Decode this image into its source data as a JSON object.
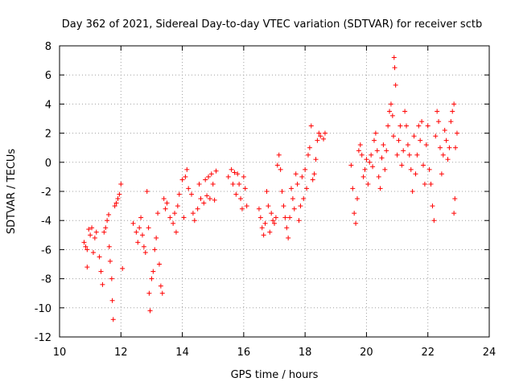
{
  "chart_data": {
    "type": "scatter",
    "title": "Day 362 of 2021, Sidereal Day-to-day VTEC variation (SDTVAR) for receiver sctb",
    "xlabel": "GPS time / hours",
    "ylabel": "SDTVAR / TECUs",
    "xlim": [
      10,
      24
    ],
    "ylim": [
      -12,
      8
    ],
    "xticks": [
      10,
      12,
      14,
      16,
      18,
      20,
      22,
      24
    ],
    "yticks": [
      -12,
      -10,
      -8,
      -6,
      -4,
      -2,
      0,
      2,
      4,
      6,
      8
    ],
    "grid": true,
    "marker": "+",
    "color": "#ff0000",
    "series": [
      {
        "name": "SDTVAR",
        "points": [
          [
            10.8,
            -5.5
          ],
          [
            10.85,
            -5.8
          ],
          [
            10.9,
            -7.2
          ],
          [
            10.9,
            -6.0
          ],
          [
            10.95,
            -4.6
          ],
          [
            11.0,
            -5.0
          ],
          [
            11.05,
            -4.5
          ],
          [
            11.1,
            -6.2
          ],
          [
            11.15,
            -5.2
          ],
          [
            11.2,
            -4.8
          ],
          [
            11.3,
            -6.5
          ],
          [
            11.35,
            -7.5
          ],
          [
            11.4,
            -8.4
          ],
          [
            11.45,
            -4.8
          ],
          [
            11.5,
            -4.5
          ],
          [
            11.55,
            -4.0
          ],
          [
            11.6,
            -3.6
          ],
          [
            11.62,
            -5.8
          ],
          [
            11.65,
            -6.8
          ],
          [
            11.7,
            -8.0
          ],
          [
            11.72,
            -9.5
          ],
          [
            11.75,
            -10.8
          ],
          [
            11.8,
            -3.0
          ],
          [
            11.85,
            -2.8
          ],
          [
            11.9,
            -2.5
          ],
          [
            11.95,
            -2.2
          ],
          [
            12.0,
            -1.5
          ],
          [
            12.05,
            -7.3
          ],
          [
            12.4,
            -4.2
          ],
          [
            12.5,
            -4.8
          ],
          [
            12.55,
            -5.5
          ],
          [
            12.6,
            -4.5
          ],
          [
            12.65,
            -3.8
          ],
          [
            12.7,
            -5.0
          ],
          [
            12.75,
            -5.8
          ],
          [
            12.8,
            -6.2
          ],
          [
            12.85,
            -2.0
          ],
          [
            12.9,
            -4.5
          ],
          [
            12.92,
            -9.0
          ],
          [
            12.95,
            -10.2
          ],
          [
            13.0,
            -8.0
          ],
          [
            13.05,
            -7.5
          ],
          [
            13.1,
            -6.0
          ],
          [
            13.15,
            -5.2
          ],
          [
            13.2,
            -3.5
          ],
          [
            13.25,
            -7.0
          ],
          [
            13.3,
            -8.5
          ],
          [
            13.35,
            -9.0
          ],
          [
            13.4,
            -2.5
          ],
          [
            13.45,
            -3.2
          ],
          [
            13.5,
            -2.8
          ],
          [
            13.6,
            -3.8
          ],
          [
            13.7,
            -4.2
          ],
          [
            13.75,
            -3.5
          ],
          [
            13.8,
            -4.8
          ],
          [
            13.85,
            -3.0
          ],
          [
            13.9,
            -2.2
          ],
          [
            14.0,
            -1.2
          ],
          [
            14.05,
            -3.8
          ],
          [
            14.1,
            -1.0
          ],
          [
            14.15,
            -0.5
          ],
          [
            14.2,
            -1.8
          ],
          [
            14.3,
            -2.2
          ],
          [
            14.35,
            -3.5
          ],
          [
            14.4,
            -4.0
          ],
          [
            14.5,
            -3.2
          ],
          [
            14.55,
            -1.5
          ],
          [
            14.6,
            -2.5
          ],
          [
            14.7,
            -2.8
          ],
          [
            14.75,
            -1.2
          ],
          [
            14.8,
            -2.3
          ],
          [
            14.85,
            -1.0
          ],
          [
            14.9,
            -2.5
          ],
          [
            14.95,
            -0.8
          ],
          [
            15.0,
            -1.5
          ],
          [
            15.05,
            -2.6
          ],
          [
            15.1,
            -0.6
          ],
          [
            15.5,
            -1.0
          ],
          [
            15.6,
            -0.5
          ],
          [
            15.65,
            -1.5
          ],
          [
            15.7,
            -0.7
          ],
          [
            15.75,
            -2.2
          ],
          [
            15.8,
            -0.8
          ],
          [
            15.85,
            -1.5
          ],
          [
            15.9,
            -2.5
          ],
          [
            15.95,
            -3.2
          ],
          [
            16.0,
            -1.0
          ],
          [
            16.05,
            -1.8
          ],
          [
            16.1,
            -3.0
          ],
          [
            16.5,
            -3.2
          ],
          [
            16.55,
            -3.8
          ],
          [
            16.6,
            -4.5
          ],
          [
            16.65,
            -5.0
          ],
          [
            16.7,
            -4.2
          ],
          [
            16.75,
            -2.0
          ],
          [
            16.8,
            -3.0
          ],
          [
            16.85,
            -4.8
          ],
          [
            16.9,
            -3.5
          ],
          [
            16.95,
            -4.0
          ],
          [
            17.0,
            -4.2
          ],
          [
            17.05,
            -3.8
          ],
          [
            17.1,
            -0.2
          ],
          [
            17.15,
            0.5
          ],
          [
            17.2,
            -0.5
          ],
          [
            17.25,
            -2.0
          ],
          [
            17.3,
            -3.0
          ],
          [
            17.35,
            -3.8
          ],
          [
            17.4,
            -4.5
          ],
          [
            17.45,
            -5.2
          ],
          [
            17.5,
            -3.8
          ],
          [
            17.55,
            -1.8
          ],
          [
            17.6,
            -2.5
          ],
          [
            17.65,
            -3.2
          ],
          [
            17.7,
            -0.8
          ],
          [
            17.75,
            -1.5
          ],
          [
            17.8,
            -4.0
          ],
          [
            17.85,
            -3.0
          ],
          [
            17.9,
            -1.0
          ],
          [
            17.95,
            -2.5
          ],
          [
            18.0,
            -0.5
          ],
          [
            18.05,
            -1.8
          ],
          [
            18.1,
            0.5
          ],
          [
            18.15,
            1.0
          ],
          [
            18.2,
            2.5
          ],
          [
            18.25,
            -1.2
          ],
          [
            18.3,
            -0.8
          ],
          [
            18.35,
            0.2
          ],
          [
            18.4,
            1.5
          ],
          [
            18.45,
            2.0
          ],
          [
            18.5,
            1.8
          ],
          [
            18.6,
            1.6
          ],
          [
            18.65,
            2.0
          ],
          [
            19.5,
            -0.2
          ],
          [
            19.55,
            -1.8
          ],
          [
            19.6,
            -3.5
          ],
          [
            19.65,
            -4.2
          ],
          [
            19.7,
            -2.5
          ],
          [
            19.75,
            0.8
          ],
          [
            19.8,
            1.2
          ],
          [
            19.85,
            0.5
          ],
          [
            19.9,
            -1.0
          ],
          [
            19.95,
            -0.5
          ],
          [
            20.0,
            0.2
          ],
          [
            20.05,
            -1.5
          ],
          [
            20.1,
            0.0
          ],
          [
            20.15,
            0.5
          ],
          [
            20.2,
            -0.3
          ],
          [
            20.25,
            1.5
          ],
          [
            20.3,
            2.0
          ],
          [
            20.35,
            0.8
          ],
          [
            20.4,
            -1.0
          ],
          [
            20.45,
            -1.8
          ],
          [
            20.5,
            0.3
          ],
          [
            20.55,
            1.2
          ],
          [
            20.6,
            -0.5
          ],
          [
            20.65,
            0.8
          ],
          [
            20.7,
            2.5
          ],
          [
            20.75,
            3.5
          ],
          [
            20.8,
            4.0
          ],
          [
            20.85,
            3.2
          ],
          [
            20.88,
            1.8
          ],
          [
            20.9,
            7.2
          ],
          [
            20.92,
            6.5
          ],
          [
            20.95,
            5.3
          ],
          [
            21.0,
            0.5
          ],
          [
            21.05,
            1.5
          ],
          [
            21.1,
            2.5
          ],
          [
            21.15,
            -0.2
          ],
          [
            21.2,
            0.8
          ],
          [
            21.25,
            3.5
          ],
          [
            21.3,
            2.5
          ],
          [
            21.35,
            1.2
          ],
          [
            21.4,
            0.5
          ],
          [
            21.45,
            -0.5
          ],
          [
            21.5,
            -2.0
          ],
          [
            21.55,
            1.8
          ],
          [
            21.6,
            -0.8
          ],
          [
            21.65,
            0.5
          ],
          [
            21.7,
            2.5
          ],
          [
            21.75,
            1.5
          ],
          [
            21.8,
            2.8
          ],
          [
            21.85,
            -0.2
          ],
          [
            21.9,
            -1.5
          ],
          [
            21.95,
            1.2
          ],
          [
            22.0,
            2.5
          ],
          [
            22.05,
            -0.5
          ],
          [
            22.1,
            -1.5
          ],
          [
            22.15,
            -3.0
          ],
          [
            22.2,
            -4.0
          ],
          [
            22.25,
            1.8
          ],
          [
            22.3,
            3.5
          ],
          [
            22.35,
            2.8
          ],
          [
            22.4,
            1.0
          ],
          [
            22.45,
            -0.8
          ],
          [
            22.5,
            0.5
          ],
          [
            22.55,
            2.2
          ],
          [
            22.6,
            1.5
          ],
          [
            22.65,
            0.2
          ],
          [
            22.7,
            1.0
          ],
          [
            22.75,
            2.8
          ],
          [
            22.8,
            3.5
          ],
          [
            22.85,
            4.0
          ],
          [
            22.88,
            -2.5
          ],
          [
            22.9,
            1.0
          ],
          [
            22.95,
            2.0
          ],
          [
            22.85,
            -3.5
          ]
        ]
      }
    ]
  }
}
